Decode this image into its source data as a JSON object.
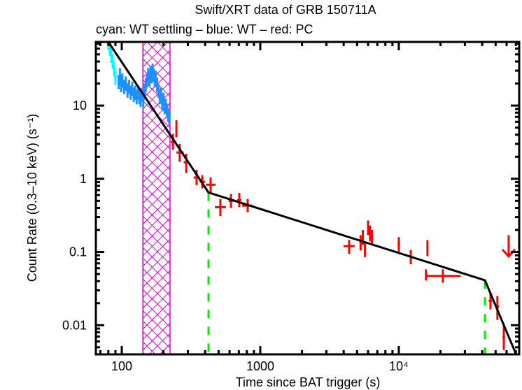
{
  "chart_data": {
    "type": "scatter",
    "title": "Swift/XRT data of GRB 150711A",
    "subtitle": "cyan: WT settling – blue: WT – red: PC",
    "xlabel": "Time since BAT trigger (s)",
    "ylabel": "Count Rate (0.3–10 keV) (s⁻¹)",
    "xscale": "log",
    "yscale": "log",
    "xlim": [
      65,
      74000
    ],
    "ylim": [
      0.004,
      74
    ],
    "x_ticks": [
      {
        "value": 100,
        "label": "100"
      },
      {
        "value": 1000,
        "label": "1000"
      },
      {
        "value": 10000,
        "label": "10⁴"
      }
    ],
    "y_ticks": [
      {
        "value": 10,
        "label": "10"
      },
      {
        "value": 1,
        "label": "1"
      },
      {
        "value": 0.1,
        "label": "0.1"
      },
      {
        "value": 0.01,
        "label": "0.01"
      }
    ],
    "colors": {
      "wt_settling": "#00ffff",
      "wt": "#1e90ff",
      "pc": "#ff0000",
      "model": "#000000",
      "breaks": "#00ee00",
      "band": "#e000e0"
    },
    "shaded_band": {
      "x_range": [
        142,
        223
      ],
      "pattern": "crosshatch"
    },
    "break_lines": [
      423,
      41900
    ],
    "series": [
      {
        "name": "WT settling",
        "color_key": "wt_settling",
        "style": "line",
        "points": [
          {
            "x": 80,
            "y": 72
          },
          {
            "x": 82,
            "y": 60
          },
          {
            "x": 84,
            "y": 48
          },
          {
            "x": 86,
            "y": 40
          },
          {
            "x": 88,
            "y": 32
          },
          {
            "x": 90,
            "y": 24
          }
        ]
      },
      {
        "name": "WT",
        "color_key": "wt",
        "style": "line",
        "points": [
          {
            "x": 95,
            "y": 21
          },
          {
            "x": 97,
            "y": 26
          },
          {
            "x": 99,
            "y": 19
          },
          {
            "x": 101,
            "y": 22
          },
          {
            "x": 104,
            "y": 18
          },
          {
            "x": 107,
            "y": 20
          },
          {
            "x": 110,
            "y": 16
          },
          {
            "x": 113,
            "y": 18
          },
          {
            "x": 116,
            "y": 15
          },
          {
            "x": 119,
            "y": 17
          },
          {
            "x": 122,
            "y": 14
          },
          {
            "x": 125,
            "y": 15
          },
          {
            "x": 128,
            "y": 13
          },
          {
            "x": 131,
            "y": 15
          },
          {
            "x": 134,
            "y": 13
          },
          {
            "x": 137,
            "y": 12
          },
          {
            "x": 140,
            "y": 14
          },
          {
            "x": 143,
            "y": 12
          },
          {
            "x": 146,
            "y": 16
          },
          {
            "x": 149,
            "y": 19
          },
          {
            "x": 152,
            "y": 22
          },
          {
            "x": 155,
            "y": 26
          },
          {
            "x": 158,
            "y": 23
          },
          {
            "x": 161,
            "y": 28
          },
          {
            "x": 164,
            "y": 25
          },
          {
            "x": 167,
            "y": 30
          },
          {
            "x": 170,
            "y": 26
          },
          {
            "x": 173,
            "y": 22
          },
          {
            "x": 176,
            "y": 24
          },
          {
            "x": 180,
            "y": 19
          },
          {
            "x": 184,
            "y": 16
          },
          {
            "x": 188,
            "y": 13
          },
          {
            "x": 192,
            "y": 14
          },
          {
            "x": 196,
            "y": 11
          },
          {
            "x": 200,
            "y": 12
          },
          {
            "x": 204,
            "y": 9.5
          },
          {
            "x": 208,
            "y": 10
          },
          {
            "x": 212,
            "y": 8.5
          },
          {
            "x": 216,
            "y": 7.5
          },
          {
            "x": 220,
            "y": 7
          }
        ]
      },
      {
        "name": "PC",
        "color_key": "pc",
        "style": "errorbars",
        "points": [
          {
            "x": 248,
            "y": 4.84,
            "xerr": [
              244,
              252
            ],
            "yerr": [
              3.7,
              6.3
            ]
          },
          {
            "x": 234,
            "y": 3.18,
            "xerr": [
              226,
              248
            ],
            "yerr": [
              2.5,
              4.1
            ]
          },
          {
            "x": 262,
            "y": 2.29,
            "xerr": [
              248,
              280
            ],
            "yerr": [
              1.7,
              3.0
            ]
          },
          {
            "x": 292,
            "y": 1.68,
            "xerr": [
              280,
              304
            ],
            "yerr": [
              1.2,
              2.2
            ]
          },
          {
            "x": 347,
            "y": 1.04,
            "xerr": [
              330,
              365
            ],
            "yerr": [
              0.82,
              1.33
            ]
          },
          {
            "x": 381,
            "y": 0.91,
            "xerr": [
              365,
              400
            ],
            "yerr": [
              0.74,
              1.12
            ]
          },
          {
            "x": 438,
            "y": 0.83,
            "xerr": [
              405,
              475
            ],
            "yerr": [
              0.64,
              1.04
            ]
          },
          {
            "x": 515,
            "y": 0.41,
            "xerr": [
              470,
              565
            ],
            "yerr": [
              0.31,
              0.53
            ]
          },
          {
            "x": 614,
            "y": 0.5,
            "xerr": [
              590,
              640
            ],
            "yerr": [
              0.4,
              0.62
            ]
          },
          {
            "x": 705,
            "y": 0.51,
            "xerr": [
              680,
              730
            ],
            "yerr": [
              0.41,
              0.64
            ]
          },
          {
            "x": 811,
            "y": 0.43,
            "xerr": [
              740,
              880
            ],
            "yerr": [
              0.35,
              0.53
            ]
          },
          {
            "x": 4380,
            "y": 0.12,
            "xerr": [
              3990,
              4800
            ],
            "yerr": [
              0.094,
              0.146
            ]
          },
          {
            "x": 5300,
            "y": 0.135,
            "xerr": [
              5200,
              5400
            ],
            "yerr": [
              0.105,
              0.17
            ]
          },
          {
            "x": 5500,
            "y": 0.16,
            "xerr": [
              5400,
              5600
            ],
            "yerr": [
              0.125,
              0.2
            ]
          },
          {
            "x": 5700,
            "y": 0.11,
            "xerr": [
              5600,
              5800
            ],
            "yerr": [
              0.085,
              0.14
            ]
          },
          {
            "x": 6000,
            "y": 0.22,
            "xerr": [
              5900,
              6100
            ],
            "yerr": [
              0.17,
              0.27
            ]
          },
          {
            "x": 6200,
            "y": 0.18,
            "xerr": [
              6100,
              6300
            ],
            "yerr": [
              0.14,
              0.23
            ]
          },
          {
            "x": 6400,
            "y": 0.16,
            "xerr": [
              6300,
              6500
            ],
            "yerr": [
              0.125,
              0.2
            ]
          },
          {
            "x": 10000,
            "y": 0.126,
            "xerr": [
              9800,
              10200
            ],
            "yerr": [
              0.1,
              0.16
            ]
          },
          {
            "x": 12200,
            "y": 0.085,
            "xerr": [
              12000,
              12400
            ],
            "yerr": [
              0.068,
              0.107
            ]
          },
          {
            "x": 16100,
            "y": 0.113,
            "xerr": [
              15900,
              16300
            ],
            "yerr": [
              0.088,
              0.145
            ]
          },
          {
            "x": 15700,
            "y": 0.048,
            "xerr": [
              15500,
              16100
            ],
            "yerr": [
              0.041,
              0.058
            ]
          },
          {
            "x": 20800,
            "y": 0.047,
            "xerr": [
              15700,
              28000
            ],
            "yerr": [
              0.038,
              0.058
            ]
          },
          {
            "x": 45900,
            "y": 0.0216,
            "xerr": [
              44500,
              47200
            ],
            "yerr": [
              0.0165,
              0.028
            ]
          },
          {
            "x": 51500,
            "y": 0.018,
            "xerr": [
              50000,
              53000
            ],
            "yerr": [
              0.0118,
              0.025
            ]
          },
          {
            "x": 57300,
            "y": 0.0069,
            "xerr": [
              56000,
              58500
            ],
            "yerr": [
              0.0046,
              0.0104
            ]
          }
        ],
        "upper_limits": [
          {
            "x": 62100,
            "y": 0.087,
            "from": 0.17
          }
        ]
      },
      {
        "name": "Broken power-law model",
        "color_key": "model",
        "style": "line",
        "points": [
          {
            "x": 80,
            "y": 74
          },
          {
            "x": 423,
            "y": 0.65
          },
          {
            "x": 41900,
            "y": 0.041
          },
          {
            "x": 70700,
            "y": 0.0039
          }
        ]
      }
    ],
    "grid": false,
    "legend": "none"
  }
}
